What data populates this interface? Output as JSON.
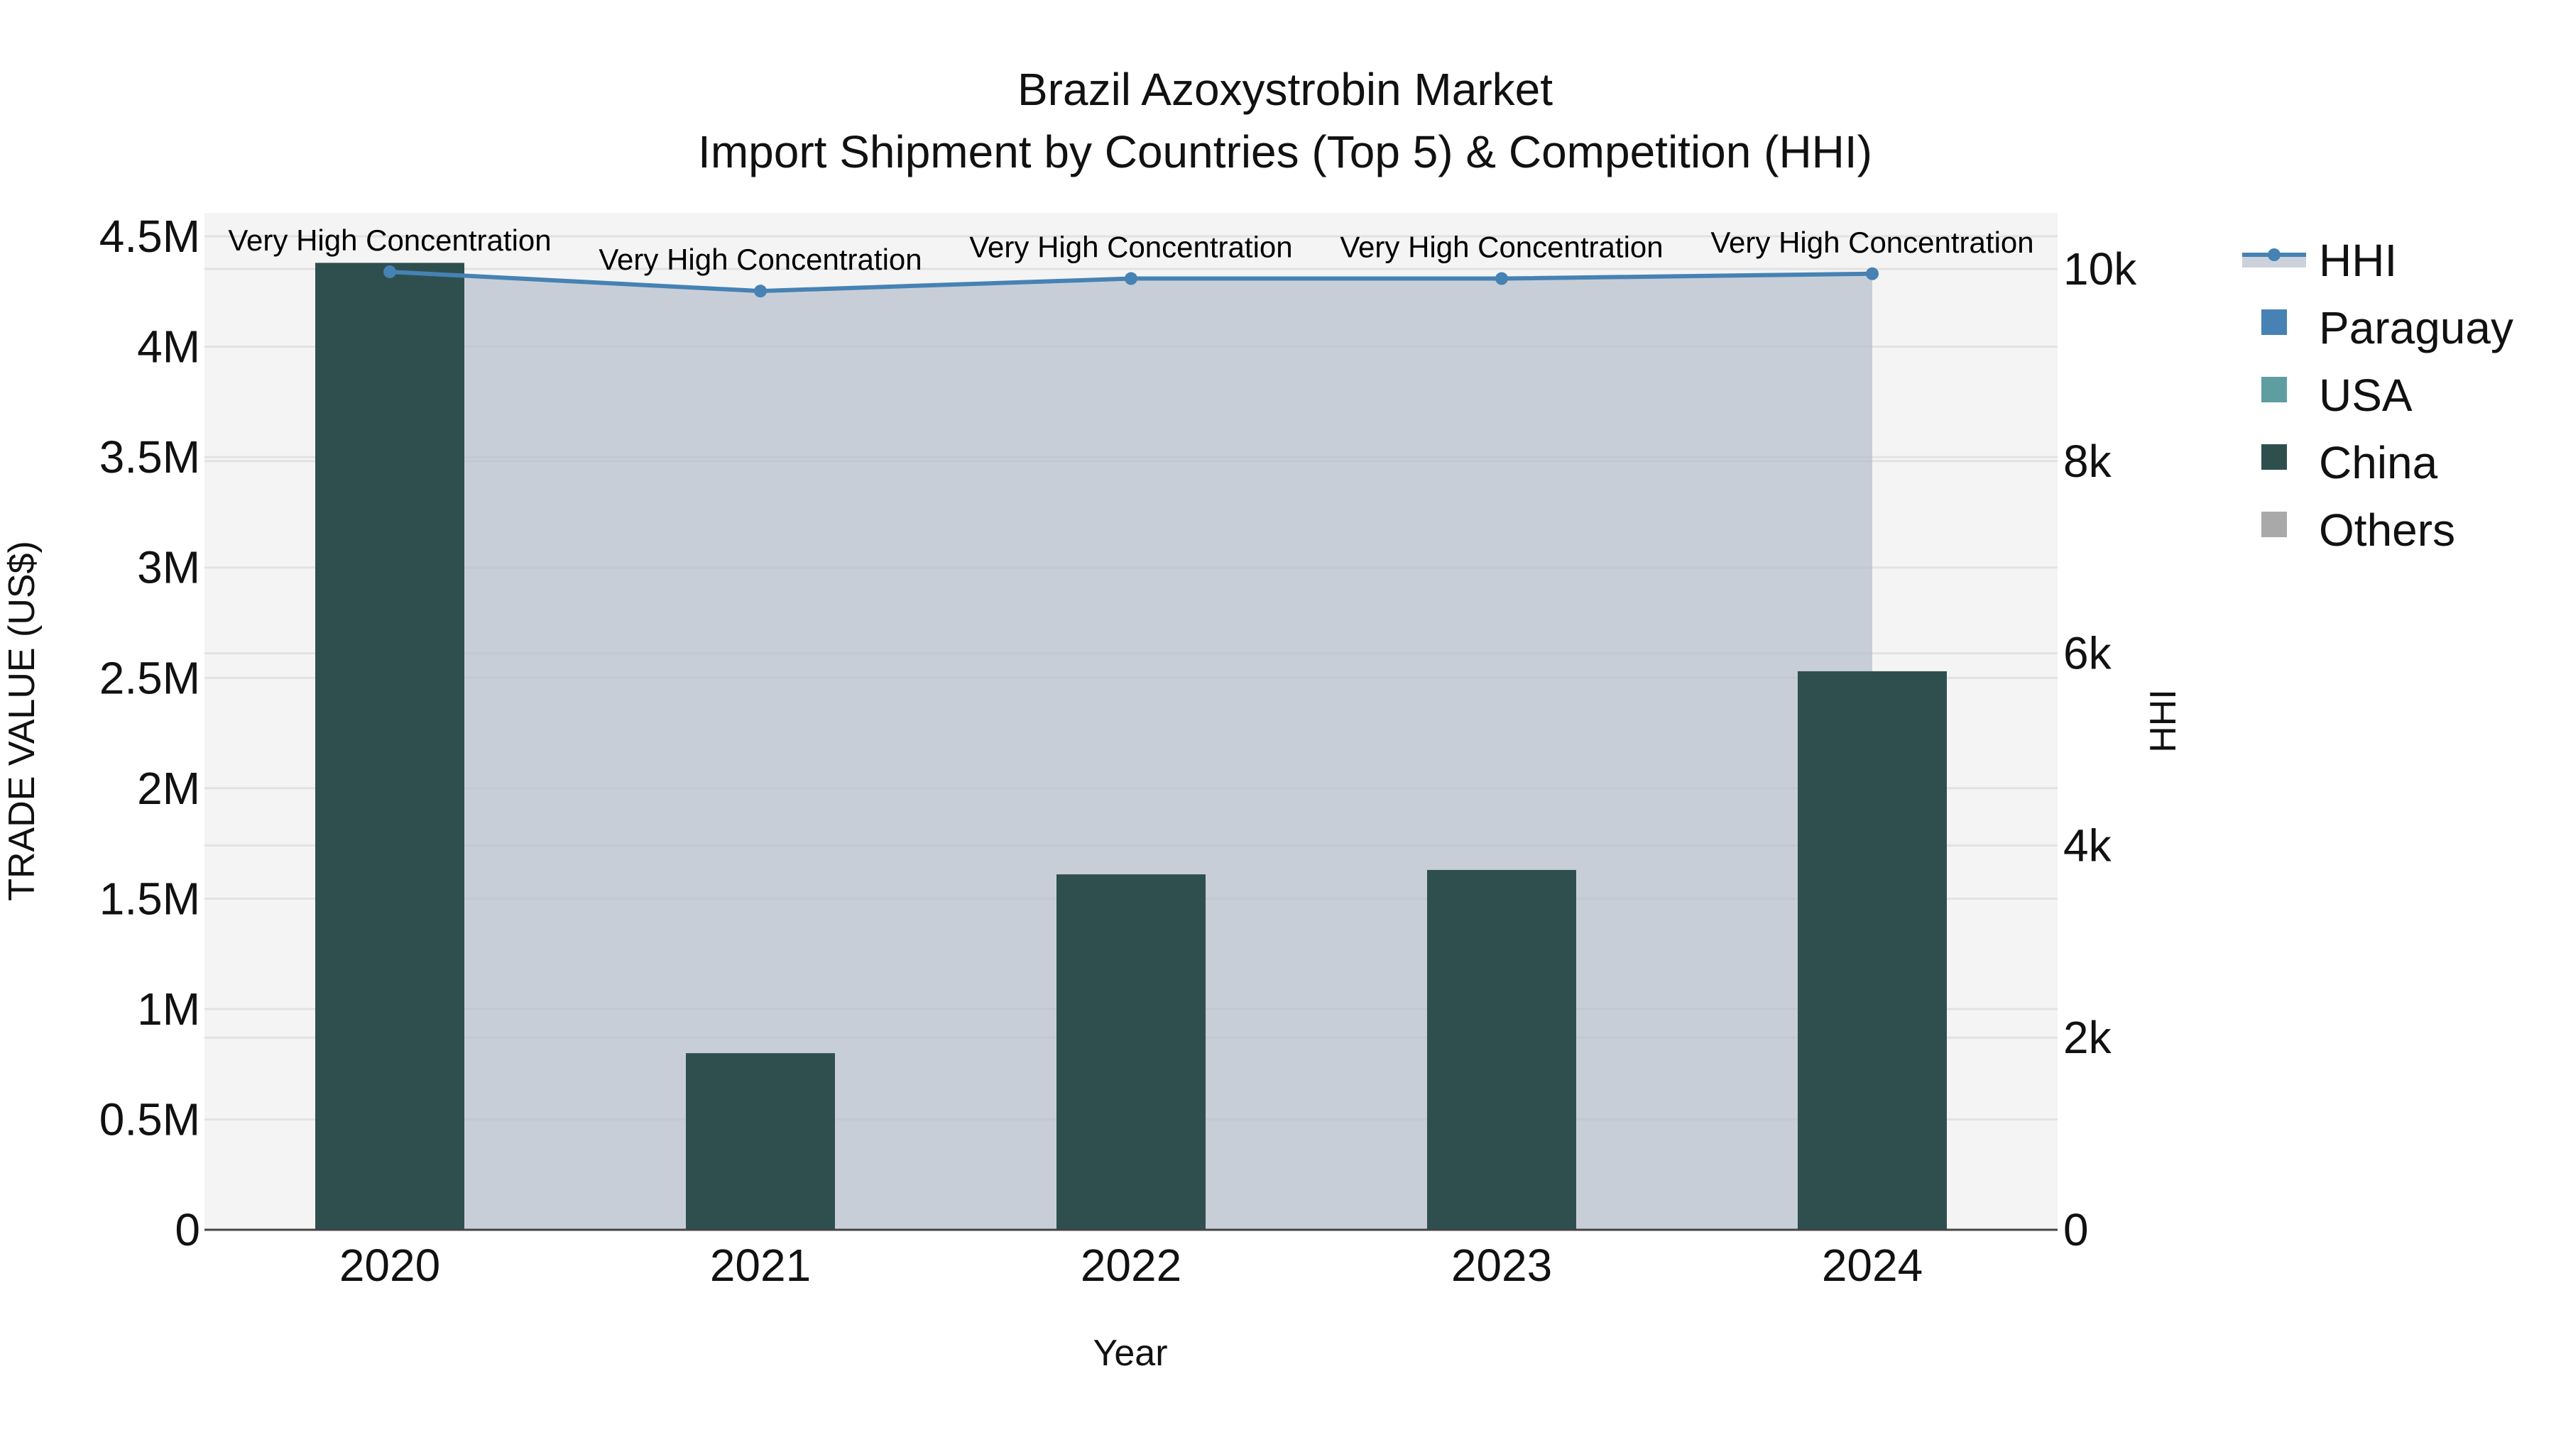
{
  "chart_data": {
    "type": "bar",
    "title": "Brazil Azoxystrobin Market",
    "subtitle": "Import Shipment by Countries (Top 5) & Competition (HHI)",
    "xlabel": "Year",
    "ylabel": "TRADE VALUE (US$)",
    "y2label": "HHI",
    "categories": [
      "2020",
      "2021",
      "2022",
      "2023",
      "2024"
    ],
    "ylim": [
      0,
      4800000
    ],
    "y2lim": [
      0,
      10550
    ],
    "yticks": [
      {
        "value": 0,
        "label": "0"
      },
      {
        "value": 500000,
        "label": "0.5M"
      },
      {
        "value": 1000000,
        "label": "1M"
      },
      {
        "value": 1500000,
        "label": "1.5M"
      },
      {
        "value": 2000000,
        "label": "2M"
      },
      {
        "value": 2500000,
        "label": "2.5M"
      },
      {
        "value": 3000000,
        "label": "3M"
      },
      {
        "value": 3500000,
        "label": "3.5M"
      },
      {
        "value": 4000000,
        "label": "4M"
      },
      {
        "value": 4500000,
        "label": "4.5M"
      }
    ],
    "y2ticks": [
      {
        "value": 0,
        "label": "0"
      },
      {
        "value": 2000,
        "label": "2k"
      },
      {
        "value": 4000,
        "label": "4k"
      },
      {
        "value": 6000,
        "label": "6k"
      },
      {
        "value": 8000,
        "label": "8k"
      },
      {
        "value": 10000,
        "label": "10k"
      }
    ],
    "grid": true,
    "legend_position": "right",
    "series": [
      {
        "name": "HHI",
        "type": "line+area",
        "axis": "y2",
        "color": "#4682b4",
        "fill": "rgba(176,186,200,0.65)",
        "values": [
          9970,
          9770,
          9900,
          9900,
          9950
        ]
      },
      {
        "name": "Paraguay",
        "type": "bar",
        "color": "#4682b4",
        "values": [
          0,
          0,
          0,
          0,
          0
        ]
      },
      {
        "name": "USA",
        "type": "bar",
        "color": "#5f9ea0",
        "values": [
          0,
          0,
          0,
          0,
          0
        ]
      },
      {
        "name": "China",
        "type": "bar",
        "color": "#2f4f4f",
        "values": [
          4380000,
          800000,
          1610000,
          1630000,
          2530000
        ]
      },
      {
        "name": "Others",
        "type": "bar",
        "color": "#a9a9a9",
        "values": [
          0,
          0,
          0,
          0,
          0
        ]
      }
    ],
    "annotations": [
      {
        "category": "2020",
        "text": "Very High Concentration"
      },
      {
        "category": "2021",
        "text": "Very High Concentration"
      },
      {
        "category": "2022",
        "text": "Very High Concentration"
      },
      {
        "category": "2023",
        "text": "Very High Concentration"
      },
      {
        "category": "2024",
        "text": "Very High Concentration"
      }
    ]
  },
  "legend": {
    "items": [
      {
        "label": "HHI",
        "symbol": "line-marker",
        "color": "#4682b4"
      },
      {
        "label": "Paraguay",
        "symbol": "square",
        "color": "#4682b4"
      },
      {
        "label": "USA",
        "symbol": "square",
        "color": "#5f9ea0"
      },
      {
        "label": "China",
        "symbol": "square",
        "color": "#2f4f4f"
      },
      {
        "label": "Others",
        "symbol": "square",
        "color": "#a9a9a9"
      }
    ]
  },
  "colors": {
    "plot_bg": "#f4f4f4",
    "grid": "#e2e2e2",
    "axis_line": "#444444"
  }
}
